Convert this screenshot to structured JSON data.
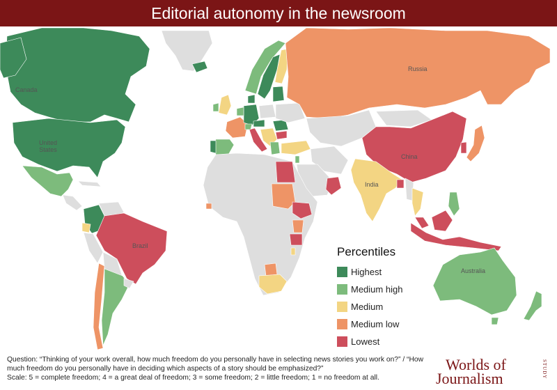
{
  "header": {
    "title": "Editorial autonomy in the newsroom"
  },
  "map": {
    "country_labels": {
      "canada": "Canada",
      "united_states": "United\nStates",
      "russia": "Russia",
      "china": "China",
      "india": "India",
      "brazil": "Brazil",
      "australia": "Australia"
    },
    "colors": {
      "highest": "#3d8a5a",
      "medium_high": "#7dbb7c",
      "medium": "#f3d583",
      "medium_low": "#ee9466",
      "lowest": "#cd4e5c",
      "no_data": "#dedede"
    }
  },
  "legend": {
    "title": "Percentiles",
    "items": [
      {
        "label": "Highest",
        "color": "#3d8a5a"
      },
      {
        "label": "Medium high",
        "color": "#7dbb7c"
      },
      {
        "label": "Medium",
        "color": "#f3d583"
      },
      {
        "label": "Medium low",
        "color": "#ee9466"
      },
      {
        "label": "Lowest",
        "color": "#cd4e5c"
      }
    ]
  },
  "footnote": {
    "question": "Question: “Thinking of your work overall, how much freedom do you personally have in selecting news stories you work on?” / “How much freedom do you personally have in deciding which aspects of a story should be emphasized?”",
    "scale": "Scale: 5 = complete freedom; 4 = a great deal of freedom; 3 = some freedom; 2 = little freedom; 1 = no freedom at all."
  },
  "logo": {
    "line1": "Worlds of",
    "line2": "Journalism",
    "study": "STUDY"
  }
}
